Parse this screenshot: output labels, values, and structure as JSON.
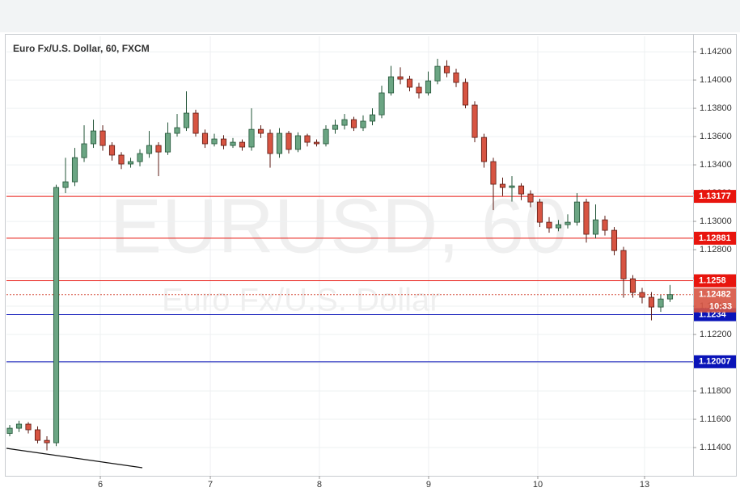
{
  "chart_data": {
    "type": "candlestick",
    "title": "Euro Fx/U.S. Dollar, 60, FXCM",
    "watermark": {
      "symbol": "EURUSD, 60",
      "description": "Euro Fx/U.S. Dollar"
    },
    "xlim": [
      -0.35,
      73.48
    ],
    "xticks": [
      {
        "value": 9.74,
        "label": "6"
      },
      {
        "value": 21.57,
        "label": "7"
      },
      {
        "value": 33.3,
        "label": "8"
      },
      {
        "value": 45.04,
        "label": "9"
      },
      {
        "value": 56.78,
        "label": "10"
      },
      {
        "value": 68.26,
        "label": "13"
      }
    ],
    "ylim": [
      1.11206,
      1.14309
    ],
    "yticks": [
      {
        "value": 1.142,
        "label": "1.14200"
      },
      {
        "value": 1.14,
        "label": "1.14000"
      },
      {
        "value": 1.138,
        "label": "1.13800"
      },
      {
        "value": 1.136,
        "label": "1.13600"
      },
      {
        "value": 1.134,
        "label": "1.13400"
      },
      {
        "value": 1.132,
        "label": "1.13200"
      },
      {
        "value": 1.13,
        "label": "1.13000"
      },
      {
        "value": 1.128,
        "label": "1.12800"
      },
      {
        "value": 1.126,
        "label": "1.12600"
      },
      {
        "value": 1.124,
        "label": "1.12400"
      },
      {
        "value": 1.122,
        "label": "1.12200"
      },
      {
        "value": 1.12,
        "label": "1.12000"
      },
      {
        "value": 1.118,
        "label": "1.11800"
      },
      {
        "value": 1.116,
        "label": "1.11600"
      },
      {
        "value": 1.114,
        "label": "1.11400"
      }
    ],
    "up_color": "#6ba583",
    "up_border": "#225437",
    "down_color": "#d75442",
    "down_border": "#5b1a13",
    "open": [
      1.115,
      1.11537,
      1.11566,
      1.11526,
      1.11451,
      1.11434,
      1.1324,
      1.1328,
      1.13451,
      1.13549,
      1.1364,
      1.13537,
      1.13469,
      1.13406,
      1.13423,
      1.1348,
      1.13537,
      1.13491,
      1.13623,
      1.13663,
      1.13766,
      1.13623,
      1.13549,
      1.13583,
      1.13537,
      1.1356,
      1.13526,
      1.13651,
      1.13623,
      1.1348,
      1.13623,
      1.13509,
      1.13606,
      1.1356,
      1.13549,
      1.13651,
      1.1368,
      1.1372,
      1.13663,
      1.13709,
      1.13754,
      1.13909,
      1.14023,
      1.14006,
      1.13949,
      1.13909,
      1.13994,
      1.14097,
      1.14051,
      1.13983,
      1.13823,
      1.13594,
      1.13423,
      1.13263,
      1.1324,
      1.13251,
      1.13194,
      1.13137,
      1.12994,
      1.12954,
      1.12977,
      1.12994,
      1.13137,
      1.12909,
      1.13011,
      1.12937,
      1.12794,
      1.12594,
      1.12497,
      1.12463,
      1.12394,
      1.12451
    ],
    "high": [
      1.1156,
      1.1159,
      1.1158,
      1.1155,
      1.1148,
      1.1326,
      1.1345,
      1.1352,
      1.1368,
      1.1372,
      1.1368,
      1.1356,
      1.1349,
      1.1345,
      1.1351,
      1.1364,
      1.1356,
      1.137,
      1.1376,
      1.1392,
      1.1379,
      1.1365,
      1.1362,
      1.1361,
      1.1359,
      1.1358,
      1.138,
      1.1368,
      1.1365,
      1.1366,
      1.1364,
      1.1363,
      1.1362,
      1.1358,
      1.1368,
      1.1372,
      1.1376,
      1.1374,
      1.1375,
      1.138,
      1.1396,
      1.141,
      1.1409,
      1.1403,
      1.1398,
      1.1406,
      1.1415,
      1.1414,
      1.1408,
      1.1401,
      1.1385,
      1.1362,
      1.1345,
      1.1331,
      1.1332,
      1.1327,
      1.1322,
      1.1316,
      1.1303,
      1.1301,
      1.1305,
      1.132,
      1.1316,
      1.1312,
      1.1304,
      1.1296,
      1.1282,
      1.1262,
      1.1253,
      1.125,
      1.1248,
      1.1255
    ],
    "low": [
      1.1148,
      1.1151,
      1.115,
      1.1143,
      1.1138,
      1.1141,
      1.132,
      1.1325,
      1.1342,
      1.1352,
      1.135,
      1.1343,
      1.1337,
      1.1338,
      1.1339,
      1.1345,
      1.1332,
      1.1347,
      1.136,
      1.1364,
      1.136,
      1.1352,
      1.1353,
      1.1351,
      1.1352,
      1.135,
      1.135,
      1.1359,
      1.1338,
      1.1345,
      1.1348,
      1.1349,
      1.1353,
      1.1353,
      1.1353,
      1.1362,
      1.1365,
      1.1364,
      1.1364,
      1.1368,
      1.1373,
      1.1389,
      1.1397,
      1.1392,
      1.1387,
      1.1389,
      1.1397,
      1.1402,
      1.1395,
      1.138,
      1.1356,
      1.1338,
      1.1308,
      1.1318,
      1.1314,
      1.1315,
      1.131,
      1.1296,
      1.1292,
      1.1293,
      1.1295,
      1.1297,
      1.1285,
      1.1288,
      1.129,
      1.1276,
      1.1246,
      1.1246,
      1.1242,
      1.123,
      1.1236,
      1.1243
    ],
    "close": [
      1.11537,
      1.11566,
      1.11526,
      1.11451,
      1.11434,
      1.1324,
      1.1328,
      1.13451,
      1.13549,
      1.1364,
      1.13537,
      1.13469,
      1.13406,
      1.13423,
      1.1348,
      1.13537,
      1.13491,
      1.13623,
      1.13663,
      1.13766,
      1.13623,
      1.13549,
      1.13583,
      1.13537,
      1.1356,
      1.13526,
      1.13651,
      1.13623,
      1.1348,
      1.13623,
      1.13509,
      1.13606,
      1.1356,
      1.13549,
      1.13651,
      1.1368,
      1.1372,
      1.13663,
      1.13709,
      1.13754,
      1.13909,
      1.14023,
      1.14006,
      1.13949,
      1.13909,
      1.13994,
      1.14097,
      1.14051,
      1.13983,
      1.13823,
      1.13594,
      1.13423,
      1.13263,
      1.1324,
      1.13251,
      1.13194,
      1.13137,
      1.12994,
      1.12954,
      1.12977,
      1.12994,
      1.13137,
      1.12909,
      1.13011,
      1.12937,
      1.12794,
      1.12594,
      1.12497,
      1.12463,
      1.12394,
      1.12451,
      1.12482
    ],
    "levels": [
      {
        "value": 1.13177,
        "color": "#e8150e"
      },
      {
        "value": 1.12881,
        "color": "#e8150e"
      },
      {
        "value": 1.1258,
        "color": "#e8150e"
      },
      {
        "value": 1.1234,
        "color": "#0a14b8"
      },
      {
        "value": 1.12007,
        "color": "#0a14b8"
      }
    ],
    "last_price": {
      "value": 1.12482,
      "countdown": "10:33",
      "color": "#d75442"
    }
  }
}
